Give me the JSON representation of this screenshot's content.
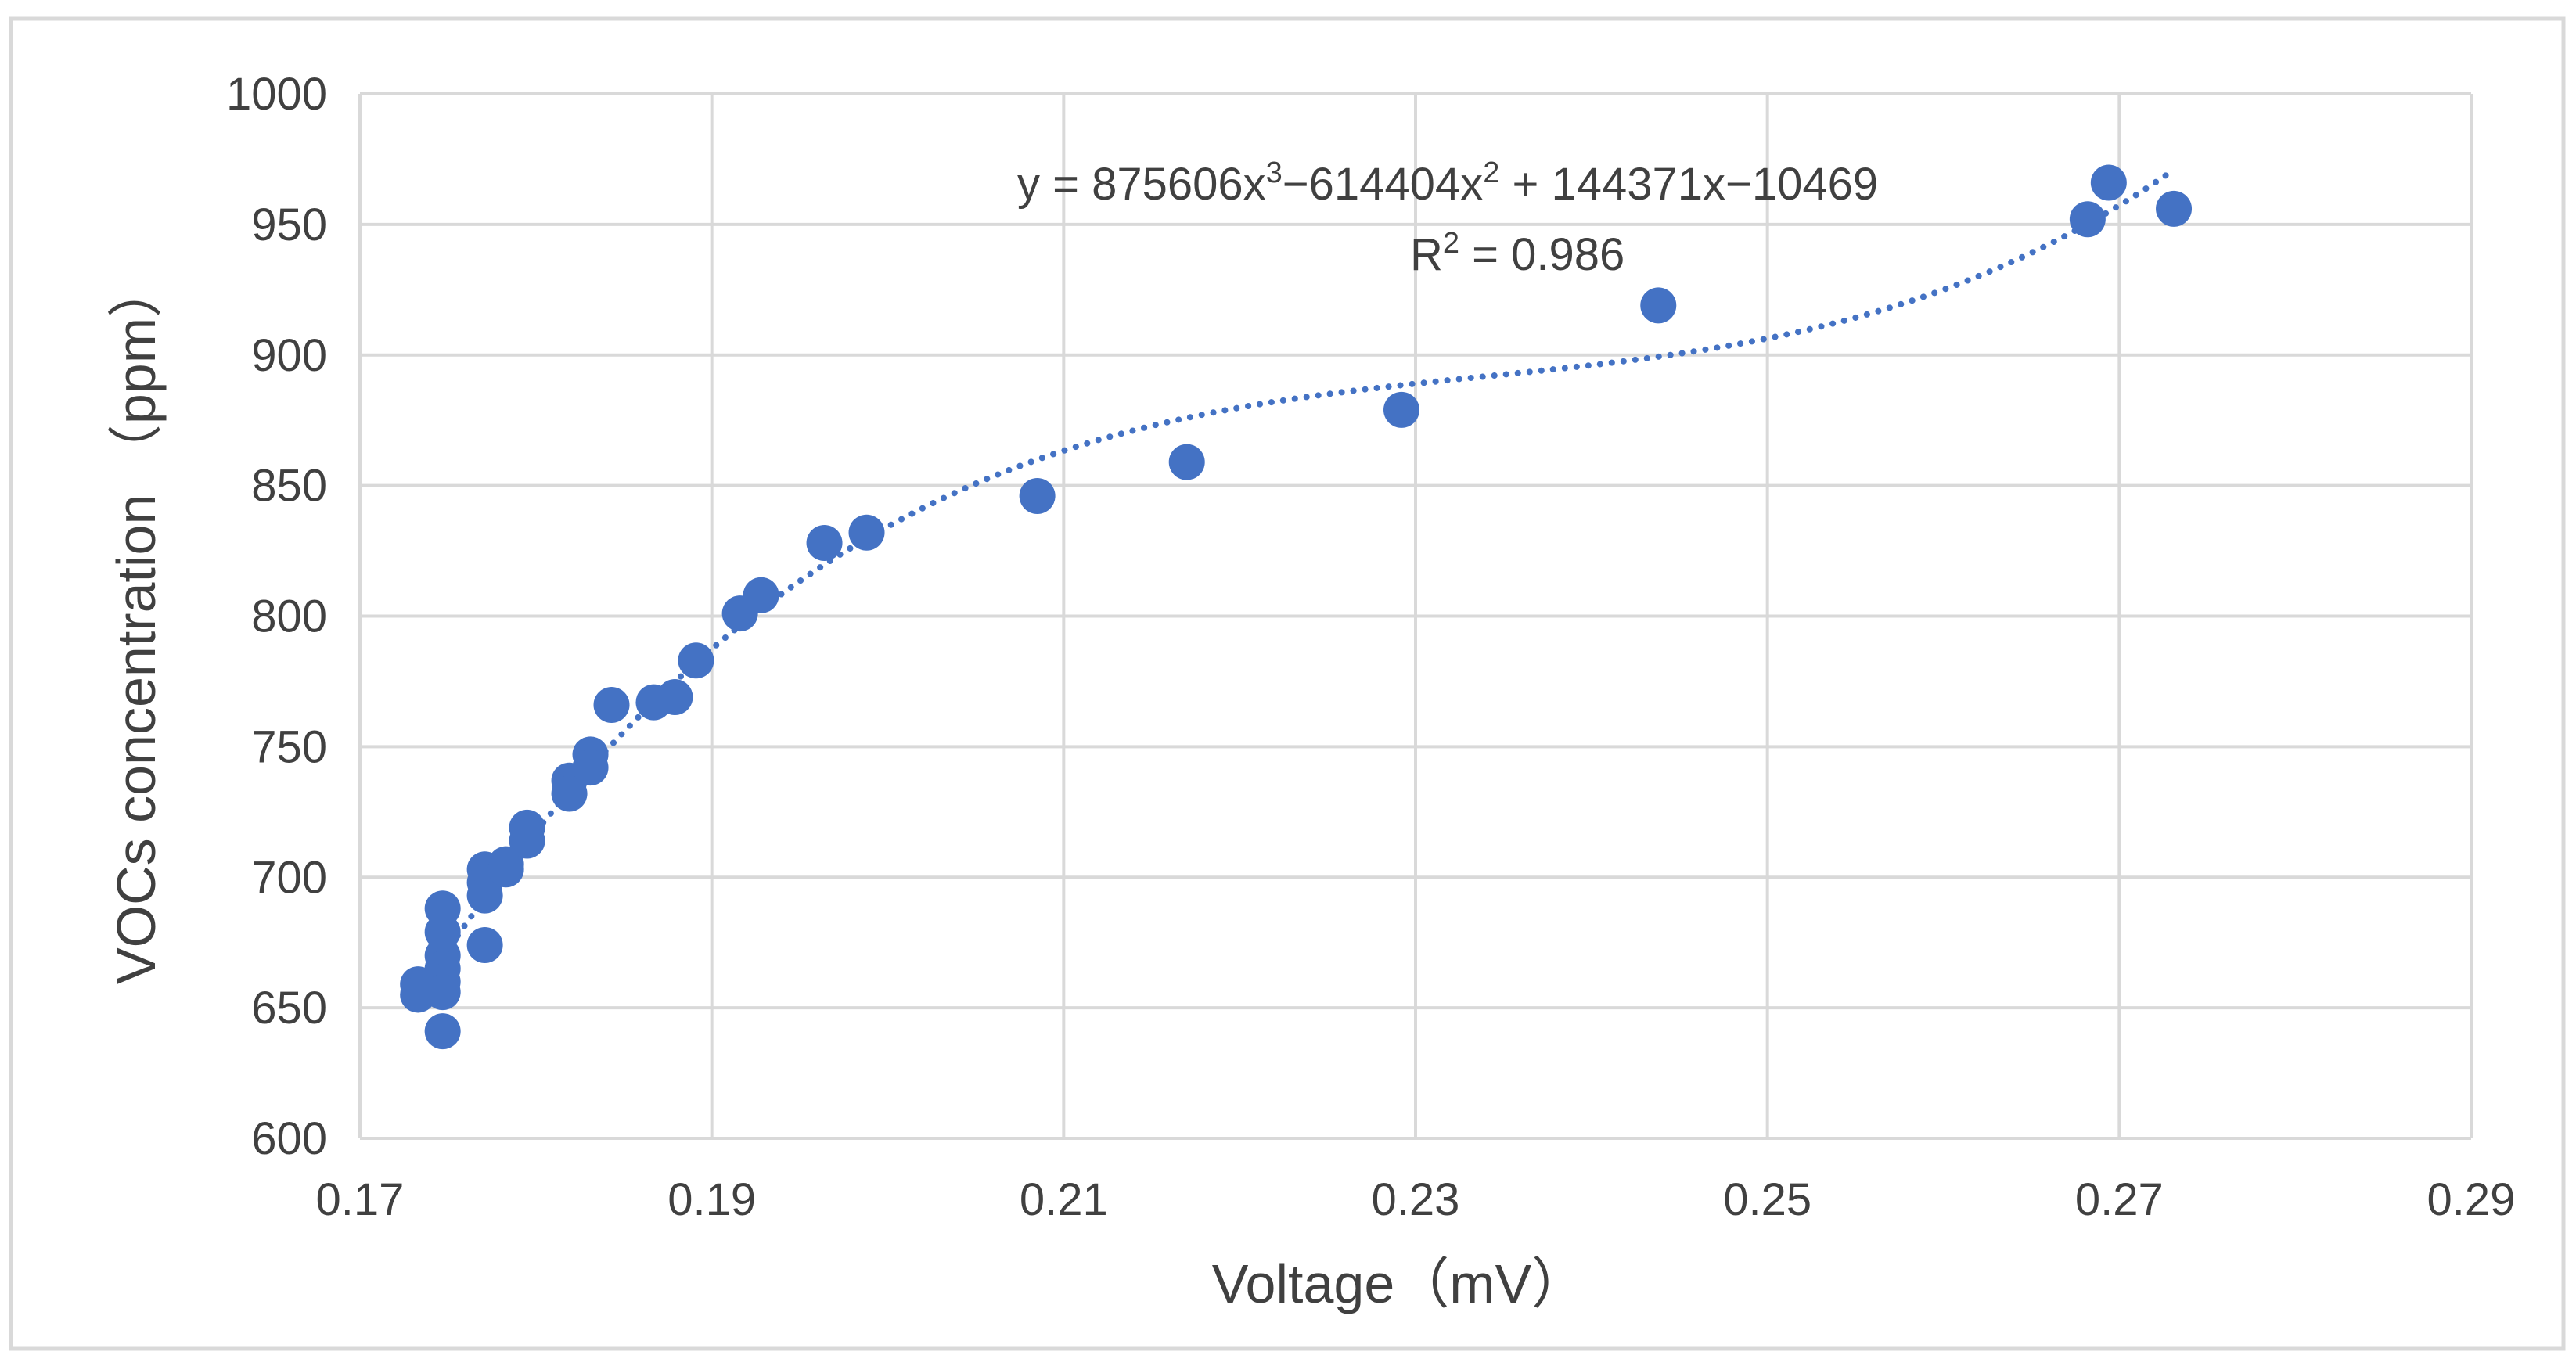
{
  "chart_data": {
    "type": "scatter",
    "title": "",
    "xlabel": "Voltage（mV）",
    "ylabel": "VOCs concentration （ppm）",
    "xlim": [
      0.17,
      0.29
    ],
    "ylim": [
      600,
      1000
    ],
    "xticks": [
      0.17,
      0.19,
      0.21,
      0.23,
      0.25,
      0.27,
      0.29
    ],
    "yticks": [
      600,
      650,
      700,
      750,
      800,
      850,
      900,
      950,
      1000
    ],
    "xtick_labels": [
      "0.17",
      "0.19",
      "0.21",
      "0.23",
      "0.25",
      "0.27",
      "0.29"
    ],
    "ytick_labels": [
      "600",
      "650",
      "700",
      "750",
      "800",
      "850",
      "900",
      "950",
      "1000"
    ],
    "grid": true,
    "marker_color": "#4472C4",
    "series": [
      {
        "name": "VOCs concentration",
        "points": [
          [
            0.1733,
            659
          ],
          [
            0.1733,
            655
          ],
          [
            0.1738,
            658
          ],
          [
            0.1747,
            688
          ],
          [
            0.1747,
            679
          ],
          [
            0.1747,
            670
          ],
          [
            0.1747,
            665
          ],
          [
            0.1747,
            660
          ],
          [
            0.1747,
            656
          ],
          [
            0.1747,
            641
          ],
          [
            0.1771,
            674
          ],
          [
            0.1771,
            703
          ],
          [
            0.1771,
            698
          ],
          [
            0.1771,
            693
          ],
          [
            0.1783,
            705
          ],
          [
            0.1783,
            703
          ],
          [
            0.1795,
            719
          ],
          [
            0.1795,
            714
          ],
          [
            0.1819,
            737
          ],
          [
            0.1819,
            732
          ],
          [
            0.1831,
            747
          ],
          [
            0.1831,
            742
          ],
          [
            0.1843,
            766
          ],
          [
            0.1867,
            767
          ],
          [
            0.1879,
            769
          ],
          [
            0.1891,
            783
          ],
          [
            0.1916,
            801
          ],
          [
            0.1928,
            808
          ],
          [
            0.1964,
            828
          ],
          [
            0.1988,
            832
          ],
          [
            0.2085,
            846
          ],
          [
            0.217,
            859
          ],
          [
            0.2292,
            879
          ],
          [
            0.2438,
            919
          ],
          [
            0.2682,
            952
          ],
          [
            0.2694,
            966
          ],
          [
            0.2731,
            956
          ]
        ]
      }
    ],
    "trendline": {
      "type": "polynomial",
      "order": 3,
      "style": "dotted",
      "color": "#4472C4",
      "x_range": [
        0.1733,
        0.2731
      ],
      "equation_parts": {
        "lead": "y = 875606x",
        "exp1": "3",
        "mid": "−614404x",
        "exp2": "2",
        "tail": " + 144371x−10469"
      },
      "r2_parts": {
        "lead": "R",
        "exp": "2",
        "tail": " = 0.986"
      }
    }
  }
}
